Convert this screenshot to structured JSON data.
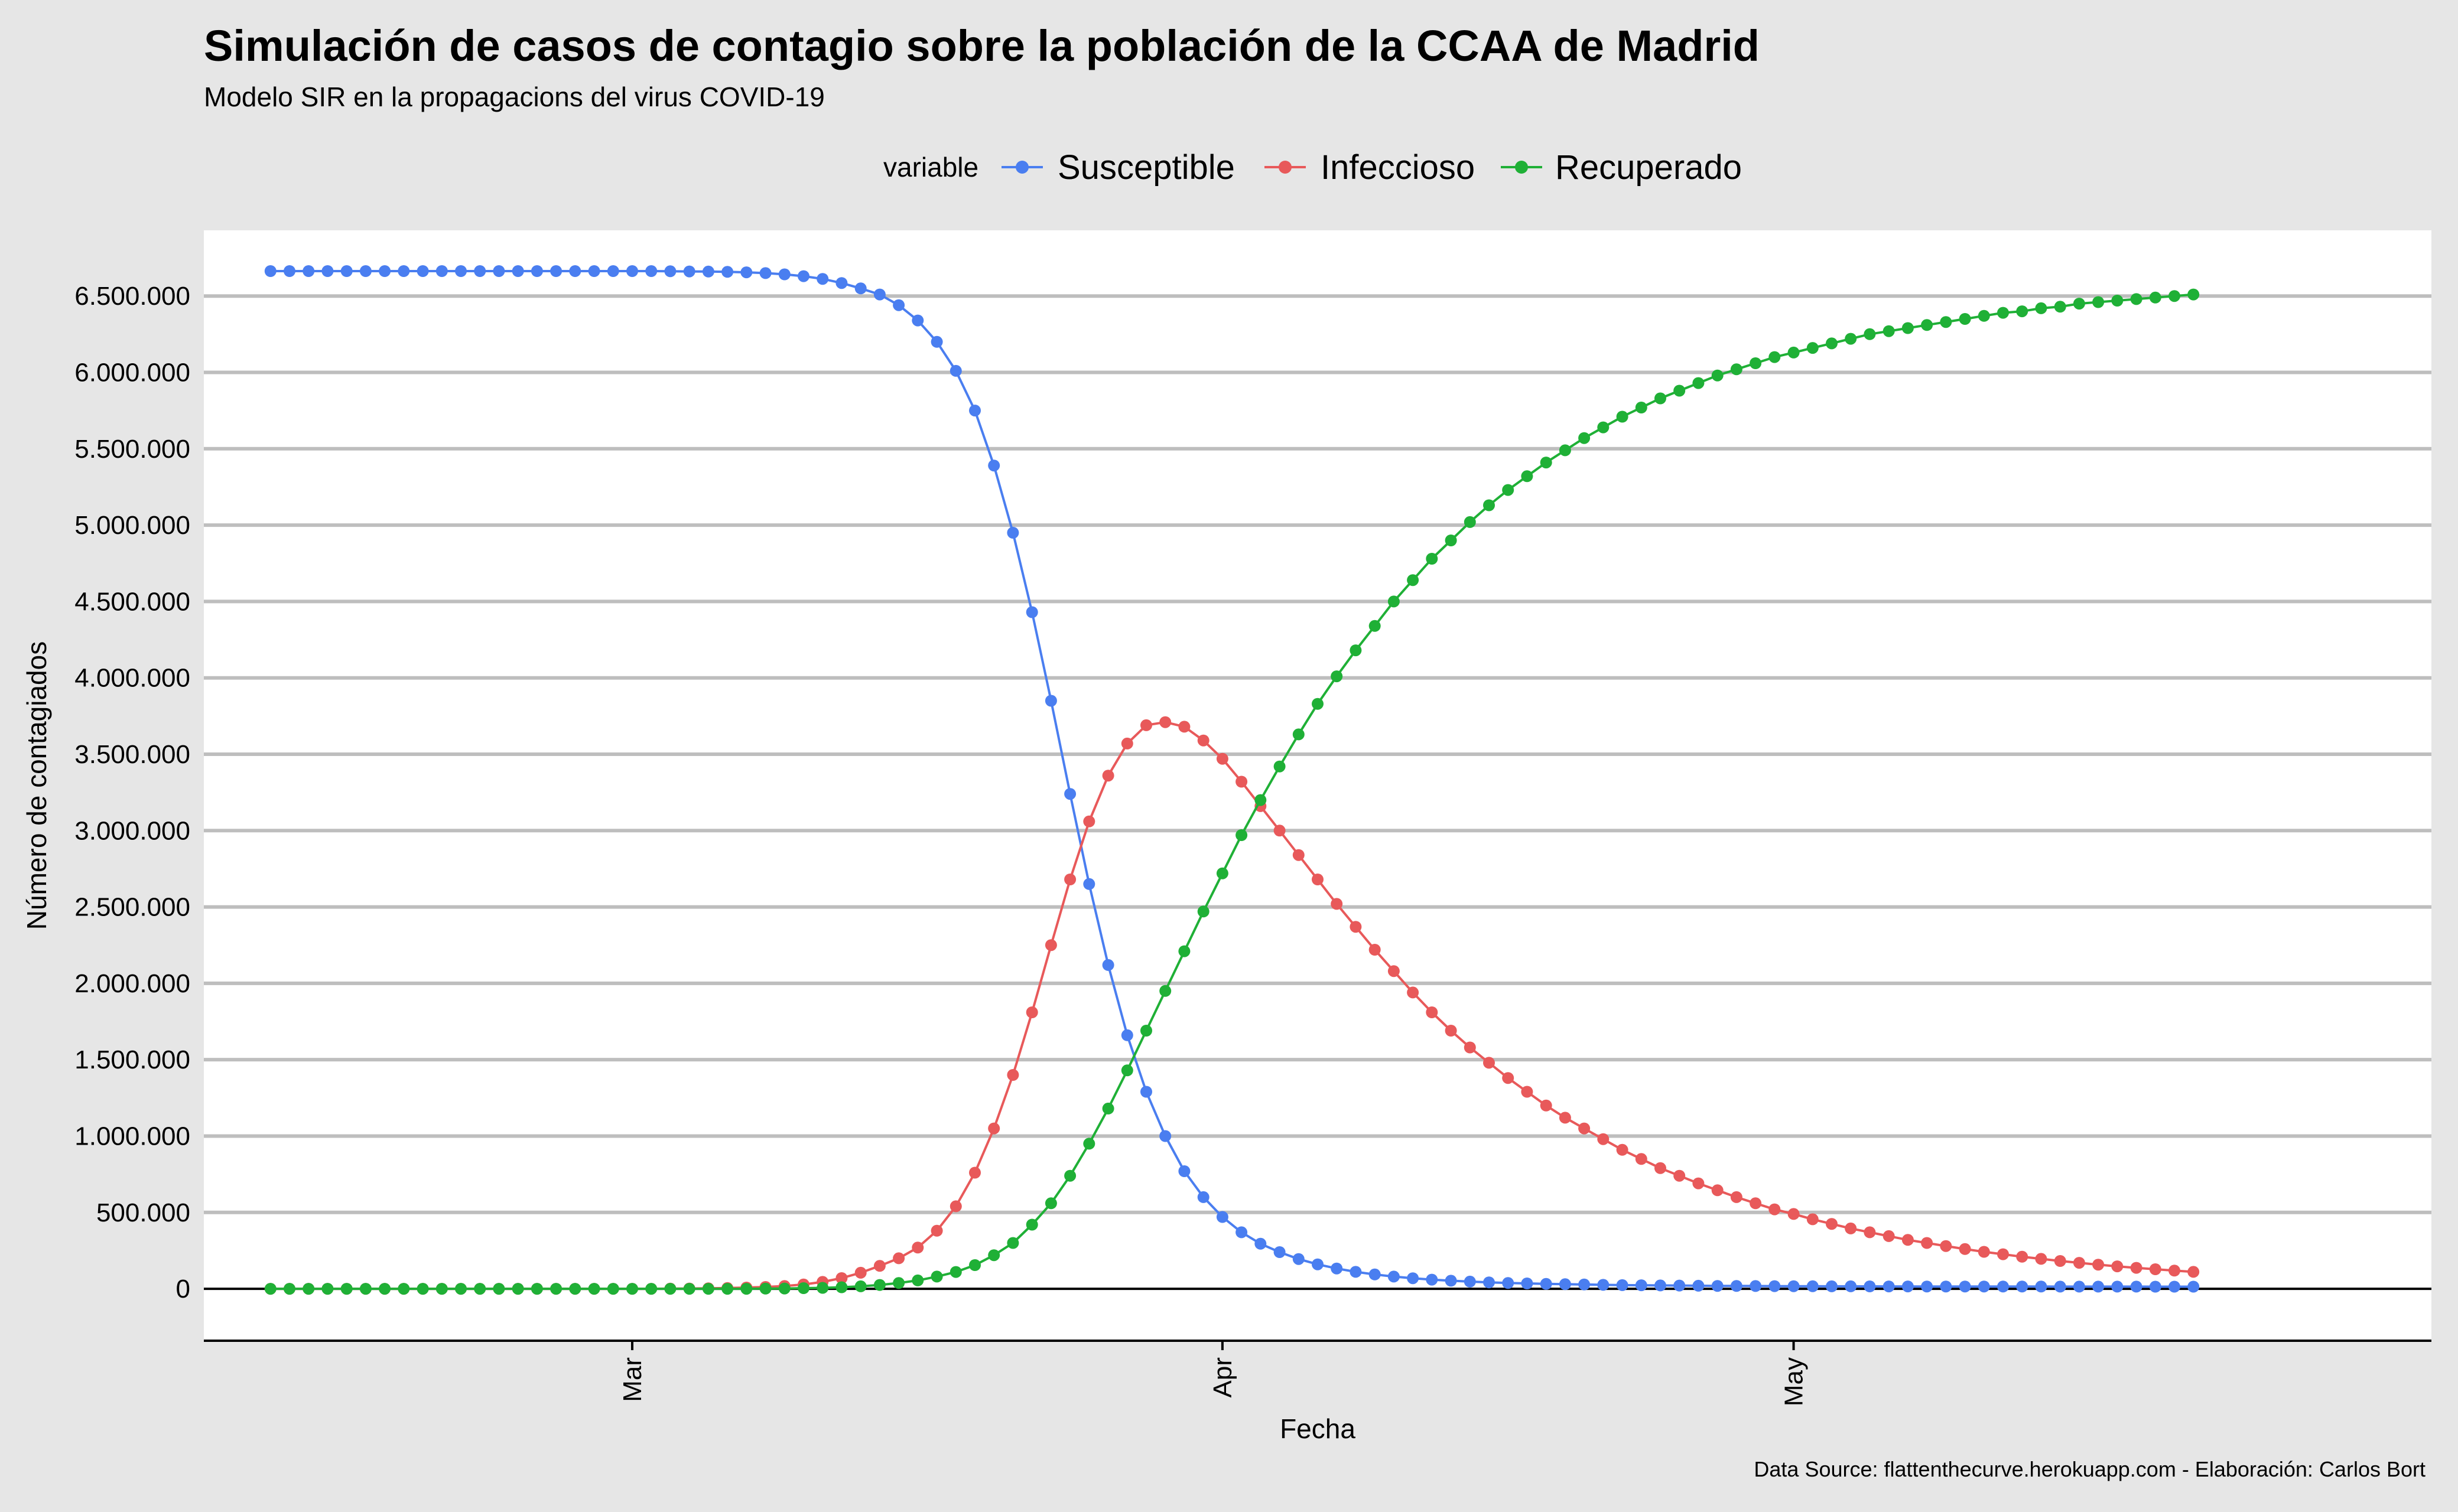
{
  "chart_data": {
    "type": "line",
    "title": "Simulación de casos de contagio sobre la población de la CCAA de Madrid",
    "subtitle": "Modelo SIR en la propagacions del virus COVID-19",
    "xlabel": "Fecha",
    "ylabel": "Número de contagiados",
    "caption": "Data Source: flattenthecurve.herokuapp.com - Elaboración: Carlos Bort",
    "legend": {
      "title": "variable",
      "position": "top"
    },
    "x_start": "2020-02-11",
    "x_end": "2020-05-31",
    "x_ticks": [
      {
        "date": "2020-03-01",
        "label": "Mar"
      },
      {
        "date": "2020-04-01",
        "label": "Apr"
      },
      {
        "date": "2020-05-01",
        "label": "May"
      }
    ],
    "ylim": [
      -340000,
      6930000
    ],
    "y_ticks": [
      0,
      500000,
      1000000,
      1500000,
      2000000,
      2500000,
      3000000,
      3500000,
      4000000,
      4500000,
      5000000,
      5500000,
      6000000,
      6500000
    ],
    "y_tick_labels": [
      "0",
      "500.000",
      "1.000.000",
      "1.500.000",
      "2.000.000",
      "2.500.000",
      "3.000.000",
      "3.500.000",
      "4.000.000",
      "4.500.000",
      "5.000.000",
      "5.500.000",
      "6.000.000",
      "6.500.000"
    ],
    "grid": {
      "horizontal": true,
      "vertical": false
    },
    "series": [
      {
        "name": "Susceptible",
        "color": "#4a7ef0",
        "values": [
          6663000,
          6663000,
          6663000,
          6663000,
          6663000,
          6663000,
          6663000,
          6663000,
          6663000,
          6663000,
          6663000,
          6663000,
          6663000,
          6663000,
          6663000,
          6663000,
          6663000,
          6663000,
          6663000,
          6663000,
          6663000,
          6662000,
          6661000,
          6660000,
          6658000,
          6655000,
          6650000,
          6642000,
          6630000,
          6612000,
          6585000,
          6550000,
          6510000,
          6440000,
          6340000,
          6200000,
          6010000,
          5750000,
          5390000,
          4950000,
          4430000,
          3850000,
          3240000,
          2650000,
          2120000,
          1660000,
          1290000,
          1000000,
          770000,
          600000,
          470000,
          370000,
          295000,
          240000,
          195000,
          160000,
          133000,
          111000,
          94000,
          80000,
          69000,
          60000,
          53000,
          47000,
          42000,
          38000,
          35000,
          32000,
          30000,
          28000,
          26000,
          24000,
          23000,
          22000,
          21000,
          20000,
          19000,
          18500,
          18000,
          17500,
          17000,
          16600,
          16300,
          16000,
          15700,
          15500,
          15300,
          15100,
          15000,
          14900,
          14800,
          14700,
          14600,
          14500,
          14400,
          14300,
          14200,
          14100,
          14050,
          14000,
          13950,
          13900
        ]
      },
      {
        "name": "Infeccioso",
        "color": "#e8595a",
        "values": [
          0,
          0,
          0,
          0,
          0,
          0,
          0,
          0,
          0,
          0,
          0,
          0,
          0,
          0,
          0,
          0,
          0,
          0,
          0,
          0,
          0,
          1000,
          2000,
          3000,
          5000,
          8000,
          12000,
          18000,
          28000,
          45000,
          70000,
          105000,
          150000,
          200000,
          270000,
          380000,
          540000,
          760000,
          1050000,
          1400000,
          1810000,
          2250000,
          2680000,
          3060000,
          3360000,
          3570000,
          3690000,
          3710000,
          3680000,
          3590000,
          3470000,
          3320000,
          3160000,
          3000000,
          2840000,
          2680000,
          2520000,
          2370000,
          2220000,
          2080000,
          1940000,
          1810000,
          1690000,
          1580000,
          1480000,
          1380000,
          1290000,
          1200000,
          1120000,
          1050000,
          980000,
          910000,
          850000,
          790000,
          740000,
          690000,
          645000,
          600000,
          560000,
          520000,
          490000,
          455000,
          425000,
          395000,
          370000,
          345000,
          320000,
          300000,
          280000,
          260000,
          242000,
          226000,
          210000,
          196000,
          182000,
          170000,
          158000,
          147000,
          137000,
          128000,
          119000,
          111000
        ]
      },
      {
        "name": "Recuperado",
        "color": "#1fb036",
        "values": [
          0,
          0,
          0,
          0,
          0,
          0,
          0,
          0,
          0,
          0,
          0,
          0,
          0,
          0,
          0,
          0,
          0,
          0,
          0,
          0,
          0,
          0,
          0,
          0,
          0,
          0,
          1000,
          2000,
          4000,
          6000,
          10000,
          16000,
          25000,
          38000,
          55000,
          80000,
          110000,
          155000,
          220000,
          300000,
          420000,
          560000,
          740000,
          950000,
          1180000,
          1430000,
          1690000,
          1950000,
          2210000,
          2470000,
          2720000,
          2970000,
          3200000,
          3420000,
          3630000,
          3830000,
          4010000,
          4180000,
          4340000,
          4500000,
          4640000,
          4780000,
          4900000,
          5020000,
          5130000,
          5230000,
          5320000,
          5410000,
          5490000,
          5570000,
          5640000,
          5710000,
          5770000,
          5830000,
          5880000,
          5930000,
          5980000,
          6020000,
          6060000,
          6100000,
          6130000,
          6160000,
          6190000,
          6220000,
          6250000,
          6270000,
          6290000,
          6310000,
          6330000,
          6350000,
          6370000,
          6390000,
          6400000,
          6420000,
          6430000,
          6450000,
          6460000,
          6470000,
          6480000,
          6490000,
          6500000,
          6510000
        ]
      }
    ]
  }
}
